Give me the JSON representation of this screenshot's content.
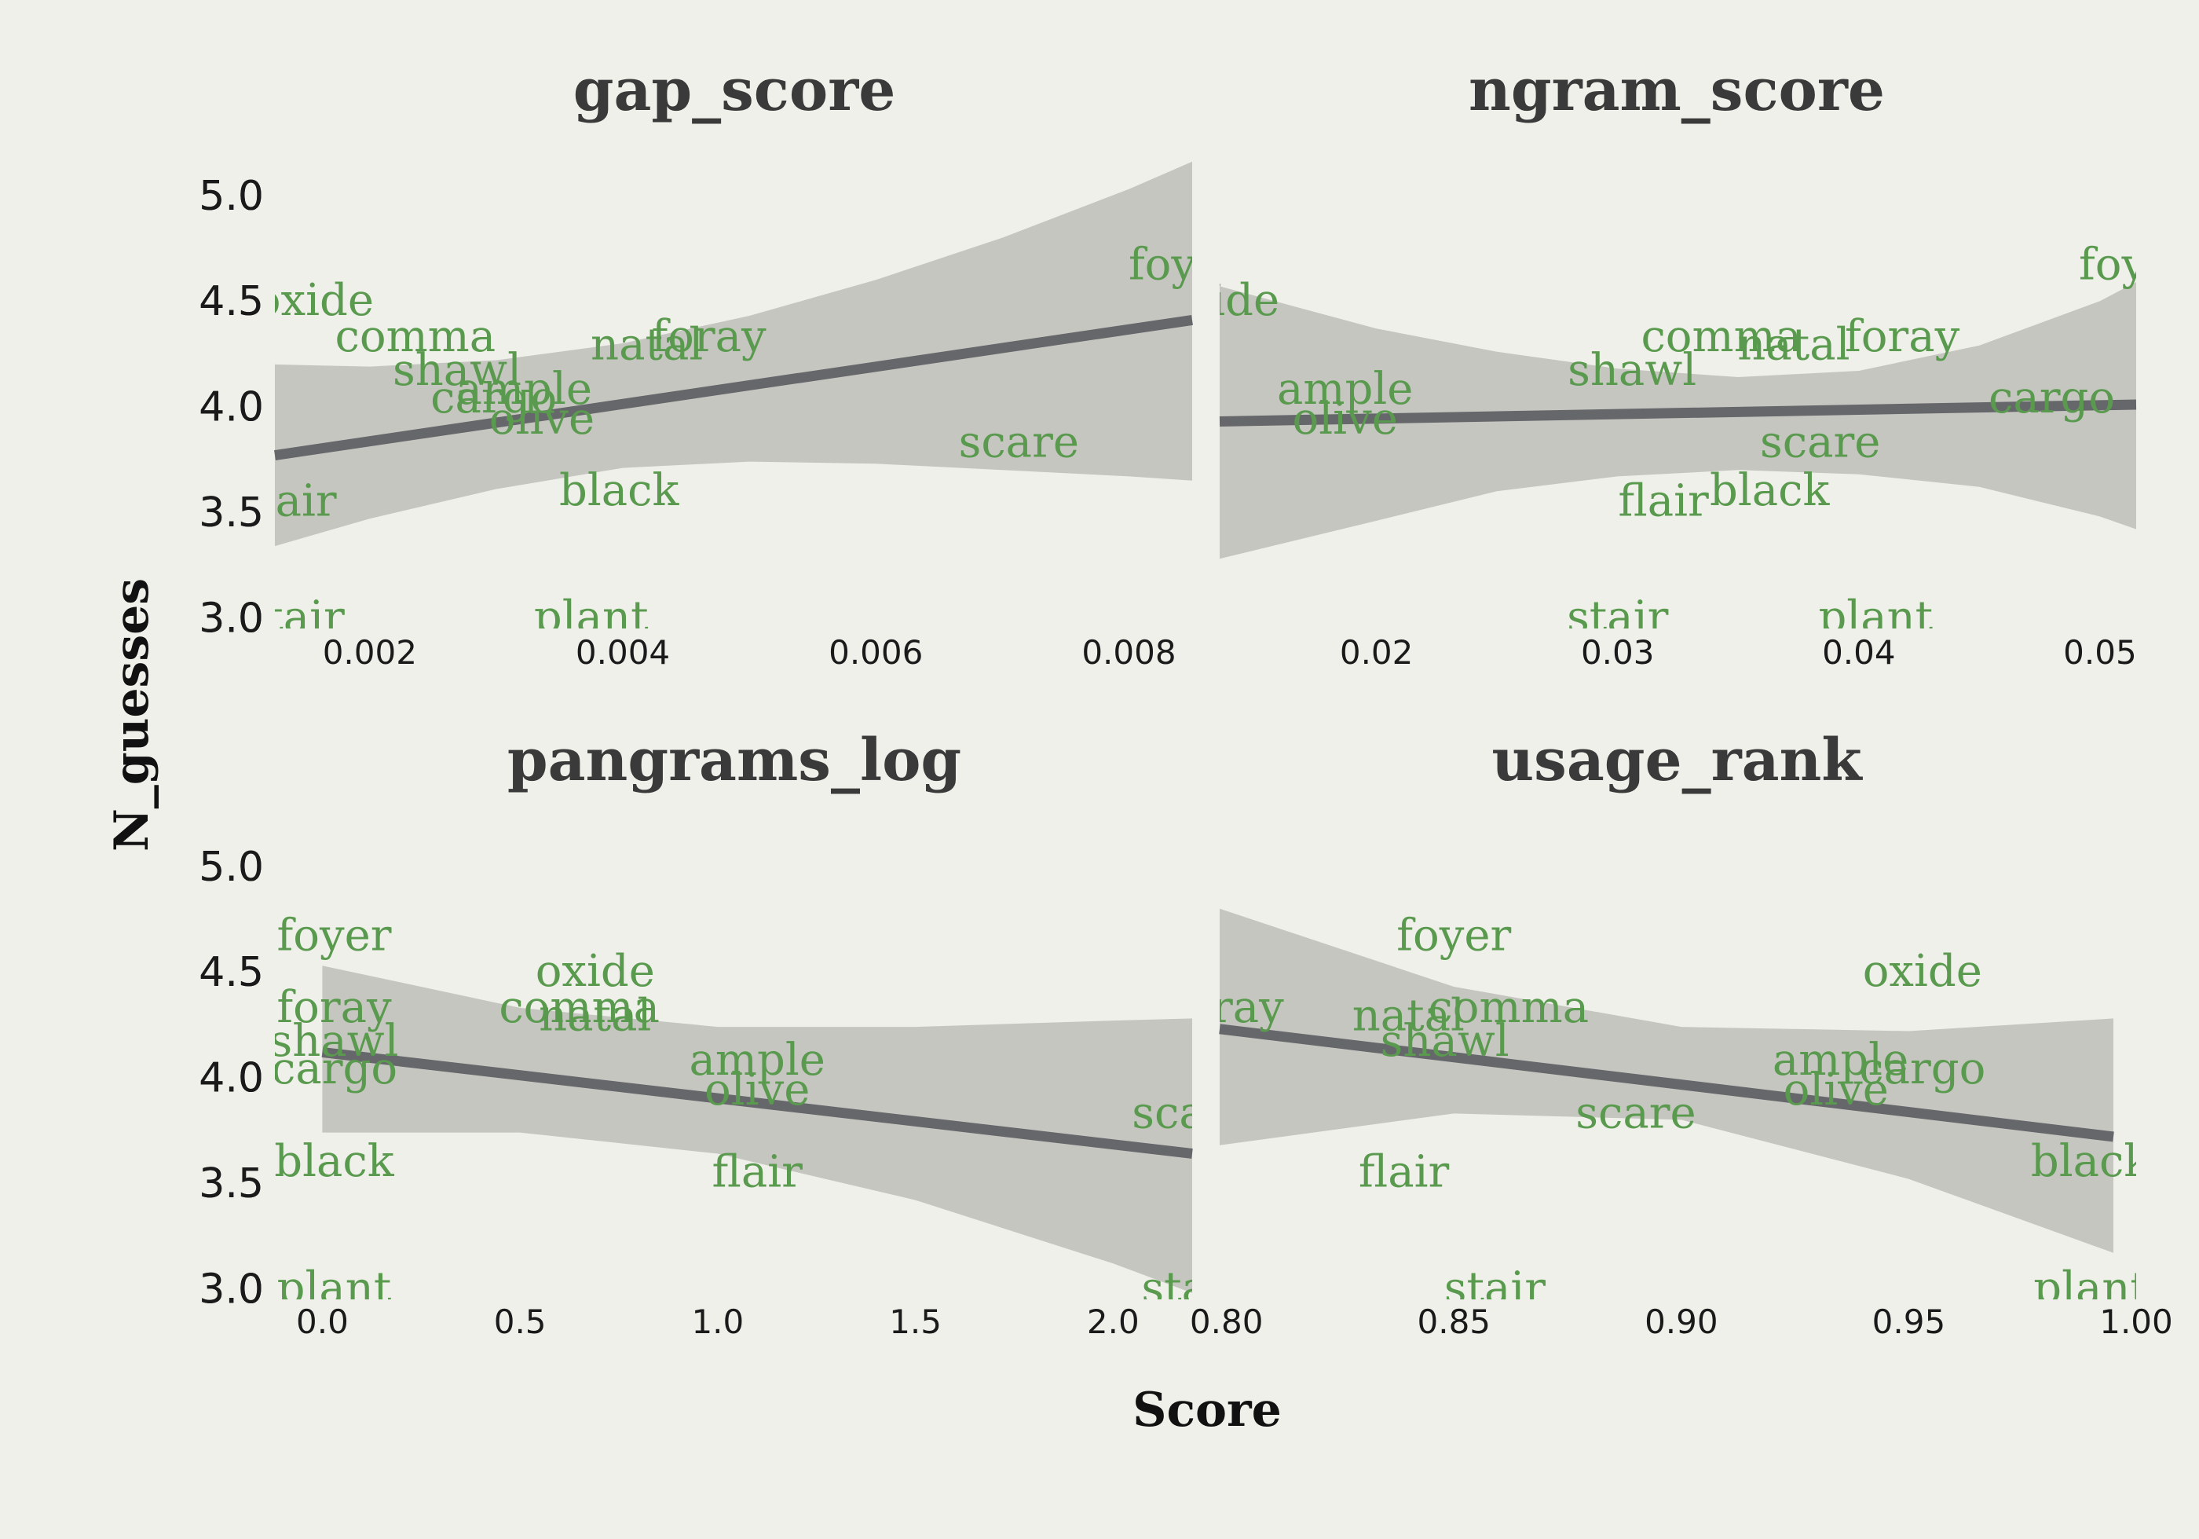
{
  "figure": {
    "xlabel": "Score",
    "ylabel": "N_guesses"
  },
  "chart_data": [
    {
      "type": "scatter",
      "title": "gap_score",
      "xlim": [
        0.00125,
        0.0085
      ],
      "ylim": [
        2.95,
        5.2
      ],
      "xticks": [
        0.002,
        0.004,
        0.006,
        0.008
      ],
      "xticklabels": [
        "0.002",
        "0.004",
        "0.006",
        "0.008"
      ],
      "yticks": [
        3.0,
        3.5,
        4.0,
        4.5,
        5.0
      ],
      "yticklabels": [
        "3.0",
        "3.5",
        "4.0",
        "4.5",
        "5.0"
      ],
      "points": [
        {
          "label": "oxide",
          "x": 0.00156,
          "y": 4.5
        },
        {
          "label": "comma",
          "x": 0.00236,
          "y": 4.33
        },
        {
          "label": "shawl",
          "x": 0.00269,
          "y": 4.17
        },
        {
          "label": "ample",
          "x": 0.00322,
          "y": 4.08
        },
        {
          "label": "cargo",
          "x": 0.00298,
          "y": 4.04
        },
        {
          "label": "olive",
          "x": 0.00336,
          "y": 3.94
        },
        {
          "label": "natal",
          "x": 0.00419,
          "y": 4.29
        },
        {
          "label": "foray",
          "x": 0.00468,
          "y": 4.33
        },
        {
          "label": "foyer",
          "x": 0.00845,
          "y": 4.67
        },
        {
          "label": "scare",
          "x": 0.00713,
          "y": 3.83
        },
        {
          "label": "black",
          "x": 0.00397,
          "y": 3.6
        },
        {
          "label": "flair",
          "x": 0.00138,
          "y": 3.55
        },
        {
          "label": "stair",
          "x": 0.0014,
          "y": 3.0
        },
        {
          "label": "plant",
          "x": 0.00375,
          "y": 3.0
        }
      ],
      "fit": {
        "x": [
          0.00125,
          0.0085
        ],
        "y": [
          3.77,
          4.41
        ]
      },
      "band": {
        "x": [
          0.00125,
          0.002,
          0.003,
          0.004,
          0.005,
          0.006,
          0.007,
          0.008,
          0.0085
        ],
        "upper": [
          4.2,
          4.19,
          4.22,
          4.3,
          4.43,
          4.6,
          4.8,
          5.03,
          5.16
        ],
        "lower": [
          3.34,
          3.47,
          3.61,
          3.71,
          3.74,
          3.73,
          3.7,
          3.67,
          3.65
        ]
      }
    },
    {
      "type": "scatter",
      "title": "ngram_score",
      "xlim": [
        0.0135,
        0.0515
      ],
      "ylim": [
        2.95,
        5.2
      ],
      "xticks": [
        0.02,
        0.03,
        0.04,
        0.05
      ],
      "xticklabels": [
        "0.02",
        "0.03",
        "0.04",
        "0.05"
      ],
      "yticks": [
        3.0,
        3.5,
        4.0,
        4.5,
        5.0
      ],
      "yticklabels": [
        "3.0",
        "3.5",
        "4.0",
        "4.5",
        "5.0"
      ],
      "points": [
        {
          "label": "oxide",
          "x": 0.0135,
          "y": 4.5
        },
        {
          "label": "ample",
          "x": 0.0187,
          "y": 4.08
        },
        {
          "label": "olive",
          "x": 0.0187,
          "y": 3.94
        },
        {
          "label": "shawl",
          "x": 0.0306,
          "y": 4.17
        },
        {
          "label": "comma",
          "x": 0.0343,
          "y": 4.33
        },
        {
          "label": "natal",
          "x": 0.0373,
          "y": 4.29
        },
        {
          "label": "foray",
          "x": 0.0418,
          "y": 4.33
        },
        {
          "label": "cargo",
          "x": 0.048,
          "y": 4.04
        },
        {
          "label": "foyer",
          "x": 0.0515,
          "y": 4.67
        },
        {
          "label": "scare",
          "x": 0.0384,
          "y": 3.83
        },
        {
          "label": "flair",
          "x": 0.0319,
          "y": 3.55
        },
        {
          "label": "black",
          "x": 0.0363,
          "y": 3.6
        },
        {
          "label": "stair",
          "x": 0.03,
          "y": 3.0
        },
        {
          "label": "plant",
          "x": 0.0407,
          "y": 3.0
        }
      ],
      "fit": {
        "x": [
          0.0135,
          0.0515
        ],
        "y": [
          3.93,
          4.01
        ]
      },
      "band": {
        "x": [
          0.0135,
          0.02,
          0.025,
          0.03,
          0.035,
          0.04,
          0.045,
          0.05,
          0.0515
        ],
        "upper": [
          4.57,
          4.37,
          4.26,
          4.18,
          4.14,
          4.17,
          4.29,
          4.5,
          4.59
        ],
        "lower": [
          3.28,
          3.46,
          3.6,
          3.67,
          3.7,
          3.68,
          3.62,
          3.48,
          3.42
        ]
      }
    },
    {
      "type": "scatter",
      "title": "pangrams_log",
      "xlim": [
        -0.12,
        2.2
      ],
      "ylim": [
        2.95,
        5.2
      ],
      "xticks": [
        0.0,
        0.5,
        1.0,
        1.5,
        2.0
      ],
      "xticklabels": [
        "0.0",
        "0.5",
        "1.0",
        "1.5",
        "2.0"
      ],
      "yticks": [
        3.0,
        3.5,
        4.0,
        4.5,
        5.0
      ],
      "yticklabels": [
        "3.0",
        "3.5",
        "4.0",
        "4.5",
        "5.0"
      ],
      "points": [
        {
          "label": "foyer",
          "x": 0.03,
          "y": 4.67
        },
        {
          "label": "foray",
          "x": 0.03,
          "y": 4.33
        },
        {
          "label": "shawl",
          "x": 0.03,
          "y": 4.17
        },
        {
          "label": "cargo",
          "x": 0.03,
          "y": 4.04
        },
        {
          "label": "black",
          "x": 0.03,
          "y": 3.6
        },
        {
          "label": "plant",
          "x": 0.03,
          "y": 3.0
        },
        {
          "label": "oxide",
          "x": 0.69,
          "y": 4.5
        },
        {
          "label": "comma",
          "x": 0.65,
          "y": 4.33
        },
        {
          "label": "natal",
          "x": 0.69,
          "y": 4.29
        },
        {
          "label": "ample",
          "x": 1.1,
          "y": 4.08
        },
        {
          "label": "olive",
          "x": 1.1,
          "y": 3.94
        },
        {
          "label": "flair",
          "x": 1.1,
          "y": 3.55
        },
        {
          "label": "scare",
          "x": 2.2,
          "y": 3.83
        },
        {
          "label": "stair",
          "x": 2.2,
          "y": 3.0
        }
      ],
      "fit": {
        "x": [
          0.0,
          2.2
        ],
        "y": [
          4.12,
          3.64
        ]
      },
      "band": {
        "x": [
          0.0,
          0.5,
          1.0,
          1.5,
          2.0,
          2.2
        ],
        "upper": [
          4.53,
          4.33,
          4.24,
          4.24,
          4.27,
          4.28
        ],
        "lower": [
          3.74,
          3.74,
          3.64,
          3.42,
          3.12,
          2.98
        ]
      }
    },
    {
      "type": "scatter",
      "title": "usage_rank",
      "xlim": [
        0.7985,
        1.0
      ],
      "ylim": [
        2.95,
        5.2
      ],
      "xticks": [
        0.8,
        0.85,
        0.9,
        0.95,
        1.0
      ],
      "xticklabels": [
        "0.80",
        "0.85",
        "0.90",
        "0.95",
        "1.00"
      ],
      "yticks": [
        3.0,
        3.5,
        4.0,
        4.5,
        5.0
      ],
      "yticklabels": [
        "3.0",
        "3.5",
        "4.0",
        "4.5",
        "5.0"
      ],
      "points": [
        {
          "label": "foray",
          "x": 0.8,
          "y": 4.33
        },
        {
          "label": "foyer",
          "x": 0.85,
          "y": 4.67
        },
        {
          "label": "natal",
          "x": 0.84,
          "y": 4.29
        },
        {
          "label": "comma",
          "x": 0.862,
          "y": 4.33
        },
        {
          "label": "shawl",
          "x": 0.848,
          "y": 4.17
        },
        {
          "label": "scare",
          "x": 0.89,
          "y": 3.83
        },
        {
          "label": "flair",
          "x": 0.839,
          "y": 3.55
        },
        {
          "label": "stair",
          "x": 0.859,
          "y": 3.0
        },
        {
          "label": "oxide",
          "x": 0.953,
          "y": 4.5
        },
        {
          "label": "ample",
          "x": 0.935,
          "y": 4.08
        },
        {
          "label": "olive",
          "x": 0.934,
          "y": 3.94
        },
        {
          "label": "cargo",
          "x": 0.953,
          "y": 4.04
        },
        {
          "label": "black",
          "x": 0.99,
          "y": 3.6
        },
        {
          "label": "plant",
          "x": 0.99,
          "y": 3.0
        }
      ],
      "fit": {
        "x": [
          0.7985,
          0.995
        ],
        "y": [
          4.23,
          3.72
        ]
      },
      "band": {
        "x": [
          0.7985,
          0.85,
          0.9,
          0.95,
          0.995
        ],
        "upper": [
          4.8,
          4.43,
          4.24,
          4.22,
          4.28
        ],
        "lower": [
          3.68,
          3.83,
          3.8,
          3.52,
          3.17
        ]
      }
    }
  ]
}
